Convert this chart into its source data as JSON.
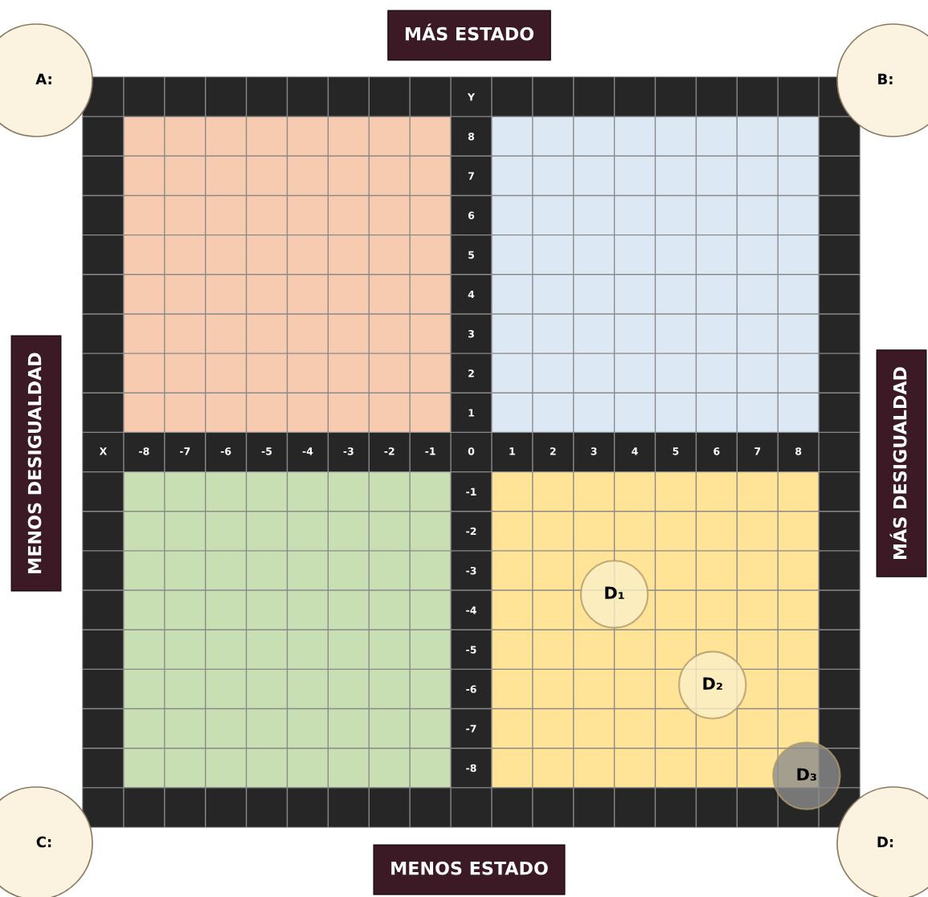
{
  "chart_data": {
    "type": "scatter",
    "title": "MÁS ESTADO",
    "xlabel": "MENOS ESTADO",
    "ylabel": "MENOS DESIGUALDAD",
    "y2label": "MÁS DESIGUALDAD",
    "x": [
      3.5,
      5.9,
      8.2
    ],
    "values": [
      -3.6,
      -5.9,
      -8.2
    ],
    "colors": [
      "#fbefc8",
      "#fbefc8",
      "#8c8c8c"
    ],
    "marker": "circle",
    "xlim": [
      -9.5,
      9.5
    ],
    "ylim": [
      -9.5,
      9.5
    ],
    "xticks": [
      {
        "value": -9,
        "label": "X"
      },
      -8,
      -7,
      -6,
      -5,
      -4,
      -3,
      -2,
      -1,
      0,
      1,
      2,
      3,
      4,
      5,
      6,
      7,
      8,
      {
        "value": -8.5,
        "label": null
      },
      {
        "value": -7.5,
        "label": null
      },
      {
        "value": -6.5,
        "label": null
      },
      {
        "value": -5.5,
        "label": null
      },
      {
        "value": -4.5,
        "label": null
      },
      {
        "value": -3.5,
        "label": null
      },
      {
        "value": -2.5,
        "label": null
      },
      {
        "value": -1.5,
        "label": null
      },
      {
        "value": -0.5,
        "label": null
      },
      {
        "value": 0.5,
        "label": null
      },
      {
        "value": 1.5,
        "label": null
      },
      {
        "value": 2.5,
        "label": null
      },
      {
        "value": 3.5,
        "label": null
      },
      {
        "value": 4.5,
        "label": null
      },
      {
        "value": 5.5,
        "label": null
      },
      {
        "value": 6.5,
        "label": null
      },
      {
        "value": 7.5,
        "label": null
      },
      {
        "value": 8.5,
        "label": null
      }
    ],
    "yticks": [
      -8,
      -7,
      -6,
      -5,
      -4,
      -3,
      -2,
      -1,
      1,
      2,
      3,
      4,
      5,
      6,
      7,
      8,
      {
        "value": 9,
        "label": "Y"
      },
      {
        "value": -8.5,
        "label": null
      },
      {
        "value": -7.5,
        "label": null
      },
      {
        "value": -6.5,
        "label": null
      },
      {
        "value": -5.5,
        "label": null
      },
      {
        "value": -4.5,
        "label": null
      },
      {
        "value": -3.5,
        "label": null
      },
      {
        "value": -2.5,
        "label": null
      },
      {
        "value": -1.5,
        "label": null
      },
      {
        "value": -0.5,
        "label": null
      },
      {
        "value": 0.5,
        "label": null
      },
      {
        "value": 1.5,
        "label": null
      },
      {
        "value": 2.5,
        "label": null
      },
      {
        "value": 3.5,
        "label": null
      },
      {
        "value": 4.5,
        "label": null
      },
      {
        "value": 5.5,
        "label": null
      },
      {
        "value": 6.5,
        "label": null
      },
      {
        "value": 7.5,
        "label": null
      },
      {
        "value": 8.5,
        "label": null
      }
    ],
    "annotations": [
      {
        "text": "D₁",
        "x": 3.5,
        "y": -3.6
      },
      {
        "text": "D₂",
        "x": 5.9,
        "y": -5.9
      },
      {
        "text": "D₃",
        "x": 8.2,
        "y": -8.2
      },
      "A:",
      "B:",
      "C:",
      "D:"
    ],
    "grid": true
  }
}
